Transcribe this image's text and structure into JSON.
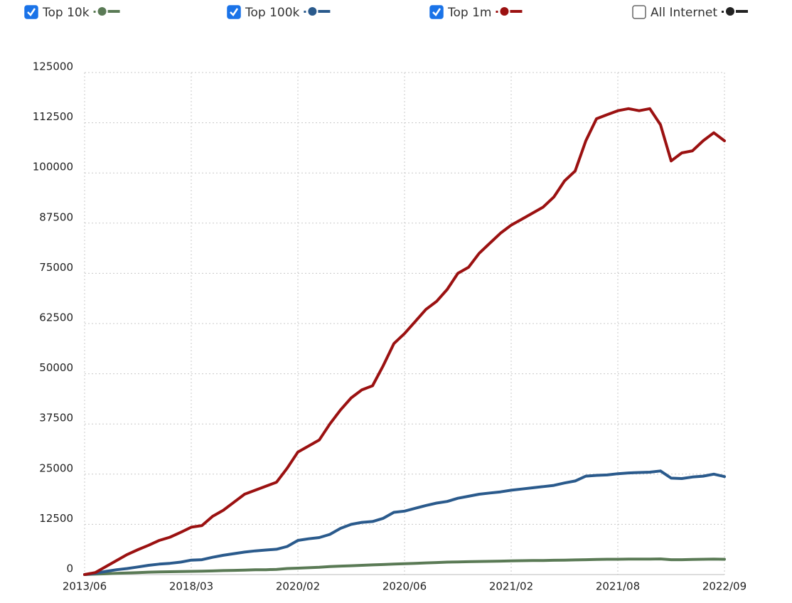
{
  "chart_data": {
    "type": "line",
    "categories": [
      "2013/06",
      null,
      null,
      null,
      null,
      null,
      null,
      null,
      null,
      null,
      "2018/03",
      null,
      null,
      null,
      null,
      null,
      null,
      null,
      null,
      null,
      "2020/02",
      null,
      null,
      null,
      null,
      null,
      null,
      null,
      null,
      null,
      "2020/06",
      null,
      null,
      null,
      null,
      null,
      null,
      null,
      null,
      null,
      "2021/02",
      null,
      null,
      null,
      null,
      null,
      null,
      null,
      null,
      null,
      "2021/08",
      null,
      null,
      null,
      null,
      null,
      null,
      null,
      null,
      null,
      "2022/09"
    ],
    "ylim": [
      0,
      125000
    ],
    "yticks": [
      0,
      12500,
      25000,
      37500,
      50000,
      62500,
      75000,
      87500,
      100000,
      112500,
      125000
    ],
    "grid": true,
    "series": [
      {
        "name": "Top 10k",
        "color": "#5a7a55",
        "checked": true,
        "values": [
          0,
          100,
          200,
          300,
          400,
          500,
          600,
          650,
          700,
          750,
          800,
          850,
          900,
          1000,
          1050,
          1100,
          1200,
          1200,
          1300,
          1500,
          1600,
          1700,
          1800,
          2000,
          2100,
          2200,
          2300,
          2400,
          2500,
          2600,
          2700,
          2800,
          2900,
          3000,
          3100,
          3150,
          3200,
          3250,
          3300,
          3350,
          3400,
          3450,
          3500,
          3500,
          3550,
          3600,
          3650,
          3700,
          3750,
          3800,
          3800,
          3850,
          3850,
          3850,
          3900,
          3700,
          3700,
          3750,
          3800,
          3850,
          3800
        ]
      },
      {
        "name": "Top 100k",
        "color": "#2a5a8c",
        "checked": true,
        "values": [
          0,
          300,
          800,
          1200,
          1500,
          1900,
          2300,
          2600,
          2800,
          3100,
          3600,
          3700,
          4300,
          4800,
          5200,
          5600,
          5900,
          6100,
          6300,
          7000,
          8500,
          8900,
          9200,
          10000,
          11500,
          12500,
          13000,
          13200,
          14000,
          15500,
          15800,
          16500,
          17200,
          17800,
          18200,
          19000,
          19500,
          20000,
          20300,
          20600,
          21000,
          21300,
          21600,
          21900,
          22200,
          22800,
          23300,
          24500,
          24700,
          24800,
          25100,
          25300,
          25400,
          25500,
          25800,
          24000,
          23900,
          24300,
          24500,
          25000,
          24400
        ]
      },
      {
        "name": "Top 1m",
        "color": "#9b1111",
        "checked": true,
        "values": [
          0,
          500,
          2000,
          3500,
          5000,
          6200,
          7300,
          8500,
          9300,
          10500,
          11800,
          12200,
          14500,
          16000,
          18000,
          20000,
          21000,
          22000,
          23000,
          26500,
          30500,
          32000,
          33500,
          37500,
          41000,
          44000,
          46000,
          47000,
          52000,
          57500,
          60000,
          63000,
          66000,
          68000,
          71000,
          75000,
          76500,
          80000,
          82500,
          85000,
          87000,
          88500,
          90000,
          91500,
          94000,
          98000,
          100500,
          108000,
          113500,
          114500,
          115500,
          116000,
          115500,
          116000,
          112000,
          103000,
          105000,
          105500,
          108000,
          110000,
          108000
        ]
      }
    ],
    "hidden_series": [
      {
        "name": "All Internet",
        "color": "#222222",
        "checked": false
      }
    ]
  }
}
